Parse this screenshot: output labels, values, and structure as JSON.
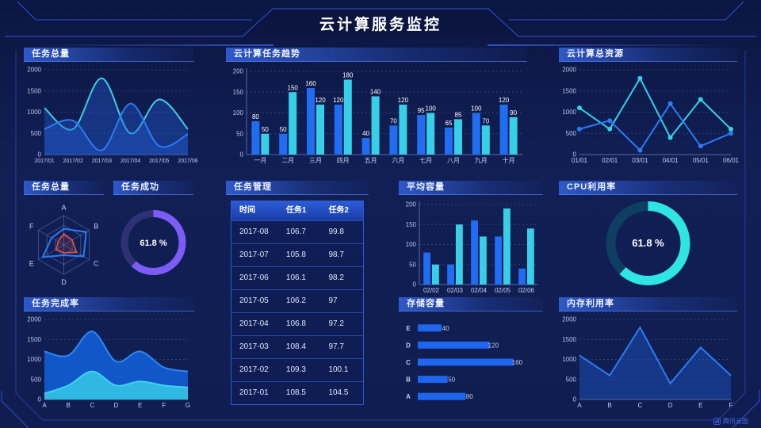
{
  "header": {
    "title": "云计算服务监控"
  },
  "panels": {
    "task_total_area": {
      "title": "任务总量"
    },
    "task_trend": {
      "title": "云计算任务趋势"
    },
    "total_resources": {
      "title": "云计算总资源"
    },
    "task_total_radar": {
      "title": "任务总量"
    },
    "task_success": {
      "title": "任务成功"
    },
    "task_management": {
      "title": "任务管理"
    },
    "avg_capacity": {
      "title": "平均容量"
    },
    "cpu_usage": {
      "title": "CPU利用率"
    },
    "task_completion": {
      "title": "任务完成率"
    },
    "storage_capacity": {
      "title": "存储容量"
    },
    "memory_usage": {
      "title": "内存利用率"
    }
  },
  "table": {
    "headers": [
      "时间",
      "任务1",
      "任务2"
    ],
    "rows": [
      [
        "2017-08",
        "106.7",
        "99.8"
      ],
      [
        "2017-07",
        "105.8",
        "98.7"
      ],
      [
        "2017-06",
        "106.1",
        "98.2"
      ],
      [
        "2017-05",
        "106.2",
        "97"
      ],
      [
        "2017-04",
        "106.8",
        "97.2"
      ],
      [
        "2017-03",
        "108.4",
        "97.7"
      ],
      [
        "2017-02",
        "109.3",
        "100.1"
      ],
      [
        "2017-01",
        "108.5",
        "104.5"
      ]
    ]
  },
  "footer": {
    "brand": "腾讯云图"
  },
  "colors": {
    "blue": "#1f6df2",
    "cyan": "#36cfe8",
    "purple": "#7b5cf7",
    "red": "#f5523c",
    "frame_line": "#2e4fd8"
  },
  "chart_data": [
    {
      "id": "task_total_area",
      "type": "line",
      "title": "任务总量",
      "x": [
        "2017/01",
        "2017/02",
        "2017/03",
        "2017/04",
        "2017/05",
        "2017/06"
      ],
      "ylim": [
        0,
        2000
      ],
      "yticks": [
        0,
        500,
        1000,
        1500,
        2000
      ],
      "xsize": 7,
      "grid": true,
      "series": [
        {
          "name": "series-cyan",
          "values": [
            1100,
            600,
            1800,
            500,
            1300,
            600
          ],
          "color": "#3ecfe0",
          "smooth": true,
          "fill": "rgba(34,92,214,0.38)"
        },
        {
          "name": "series-blue",
          "values": [
            600,
            800,
            100,
            1200,
            200,
            480
          ],
          "color": "#2a7cf5",
          "smooth": true,
          "fill": "rgba(34,92,214,0.38)"
        }
      ]
    },
    {
      "id": "task_trend",
      "type": "bar",
      "title": "云计算任务趋势",
      "categories": [
        "一月",
        "二月",
        "三月",
        "四月",
        "五月",
        "六月",
        "七月",
        "八月",
        "九月",
        "十月"
      ],
      "ylim": [
        0,
        200
      ],
      "yticks": [
        0,
        50,
        100,
        150,
        200
      ],
      "value_labels": true,
      "series": [
        {
          "name": "series-blue",
          "values": [
            80,
            50,
            160,
            120,
            40,
            70,
            95,
            65,
            100,
            120
          ],
          "color": "#1f6df2"
        },
        {
          "name": "series-cyan",
          "values": [
            50,
            150,
            120,
            180,
            140,
            120,
            100,
            85,
            70,
            90
          ],
          "color": "#36cfe8"
        }
      ]
    },
    {
      "id": "total_resources",
      "type": "line",
      "title": "云计算总资源",
      "x": [
        "01/01",
        "02/01",
        "03/01",
        "04/01",
        "05/01",
        "06/01"
      ],
      "ylim": [
        0,
        2000
      ],
      "yticks": [
        0,
        500,
        1000,
        1500,
        2000
      ],
      "grid": true,
      "series": [
        {
          "name": "series-cyan",
          "values": [
            1100,
            600,
            1800,
            400,
            1300,
            600
          ],
          "color": "#36cfe8",
          "markers": true
        },
        {
          "name": "series-blue",
          "values": [
            600,
            800,
            100,
            1200,
            200,
            500
          ],
          "color": "#2a7cf5",
          "markers": true
        }
      ]
    },
    {
      "id": "task_total_radar",
      "type": "radar",
      "title": "任务总量",
      "axes": [
        "A",
        "B",
        "C",
        "D",
        "E",
        "F"
      ],
      "max": 100,
      "series": [
        {
          "name": "series-blue",
          "values": [
            55,
            88,
            78,
            35,
            83,
            48
          ],
          "color": "#2a7cf5",
          "fill": "none"
        },
        {
          "name": "series-red",
          "values": [
            38,
            33,
            50,
            27,
            30,
            22
          ],
          "color": "#f5523c",
          "fill": "rgba(245,82,60,0.15)"
        }
      ]
    },
    {
      "id": "task_success",
      "type": "donut",
      "title": "任务成功",
      "value": 61.8,
      "label": "61.8 %",
      "color": "#7b5cf7",
      "track": "#2c3273"
    },
    {
      "id": "avg_capacity",
      "type": "bar",
      "title": "平均容量",
      "categories": [
        "02/02",
        "02/03",
        "02/04",
        "02/05",
        "02/06"
      ],
      "ylim": [
        0,
        200
      ],
      "yticks": [
        0,
        50,
        100,
        150,
        200
      ],
      "value_labels": false,
      "series": [
        {
          "name": "series-blue",
          "values": [
            80,
            50,
            160,
            120,
            40
          ],
          "color": "#1f6df2"
        },
        {
          "name": "series-cyan",
          "values": [
            50,
            150,
            120,
            190,
            140
          ],
          "color": "#36cfe8"
        }
      ]
    },
    {
      "id": "cpu_usage",
      "type": "donut",
      "title": "CPU利用率",
      "value": 61.8,
      "label": "61.8 %",
      "color": "#2ee4e4",
      "track": "#0e3f63"
    },
    {
      "id": "task_completion",
      "type": "line",
      "title": "任务完成率",
      "x": [
        "A",
        "B",
        "C",
        "D",
        "E",
        "F",
        "G"
      ],
      "ylim": [
        0,
        2000
      ],
      "yticks": [
        0,
        500,
        1000,
        1500,
        2000
      ],
      "grid": true,
      "series": [
        {
          "name": "series-blue",
          "values": [
            1200,
            1100,
            1700,
            950,
            1200,
            800,
            700
          ],
          "color": "#2f86f0",
          "smooth": true,
          "fill": "#1157c9"
        },
        {
          "name": "series-cyan",
          "values": [
            150,
            350,
            700,
            350,
            450,
            350,
            300
          ],
          "color": "#3fd2ee",
          "smooth": true,
          "fill": "#2fb9e2"
        }
      ]
    },
    {
      "id": "storage_capacity",
      "type": "hbar",
      "title": "存储容量",
      "categories": [
        "E",
        "D",
        "C",
        "B",
        "A"
      ],
      "values": [
        40,
        120,
        160,
        50,
        80
      ],
      "xmax": 170,
      "color": "#1e66ee",
      "value_labels": true
    },
    {
      "id": "memory_usage",
      "type": "line",
      "title": "内存利用率",
      "x": [
        "A",
        "B",
        "C",
        "D",
        "E",
        "F"
      ],
      "ylim": [
        0,
        2000
      ],
      "yticks": [
        0,
        500,
        1000,
        1500,
        2000
      ],
      "grid": true,
      "series": [
        {
          "name": "series-blue",
          "values": [
            1100,
            600,
            1800,
            400,
            1300,
            600
          ],
          "color": "#2a7cf5",
          "fill": "rgba(30,86,200,0.45)"
        }
      ]
    }
  ]
}
